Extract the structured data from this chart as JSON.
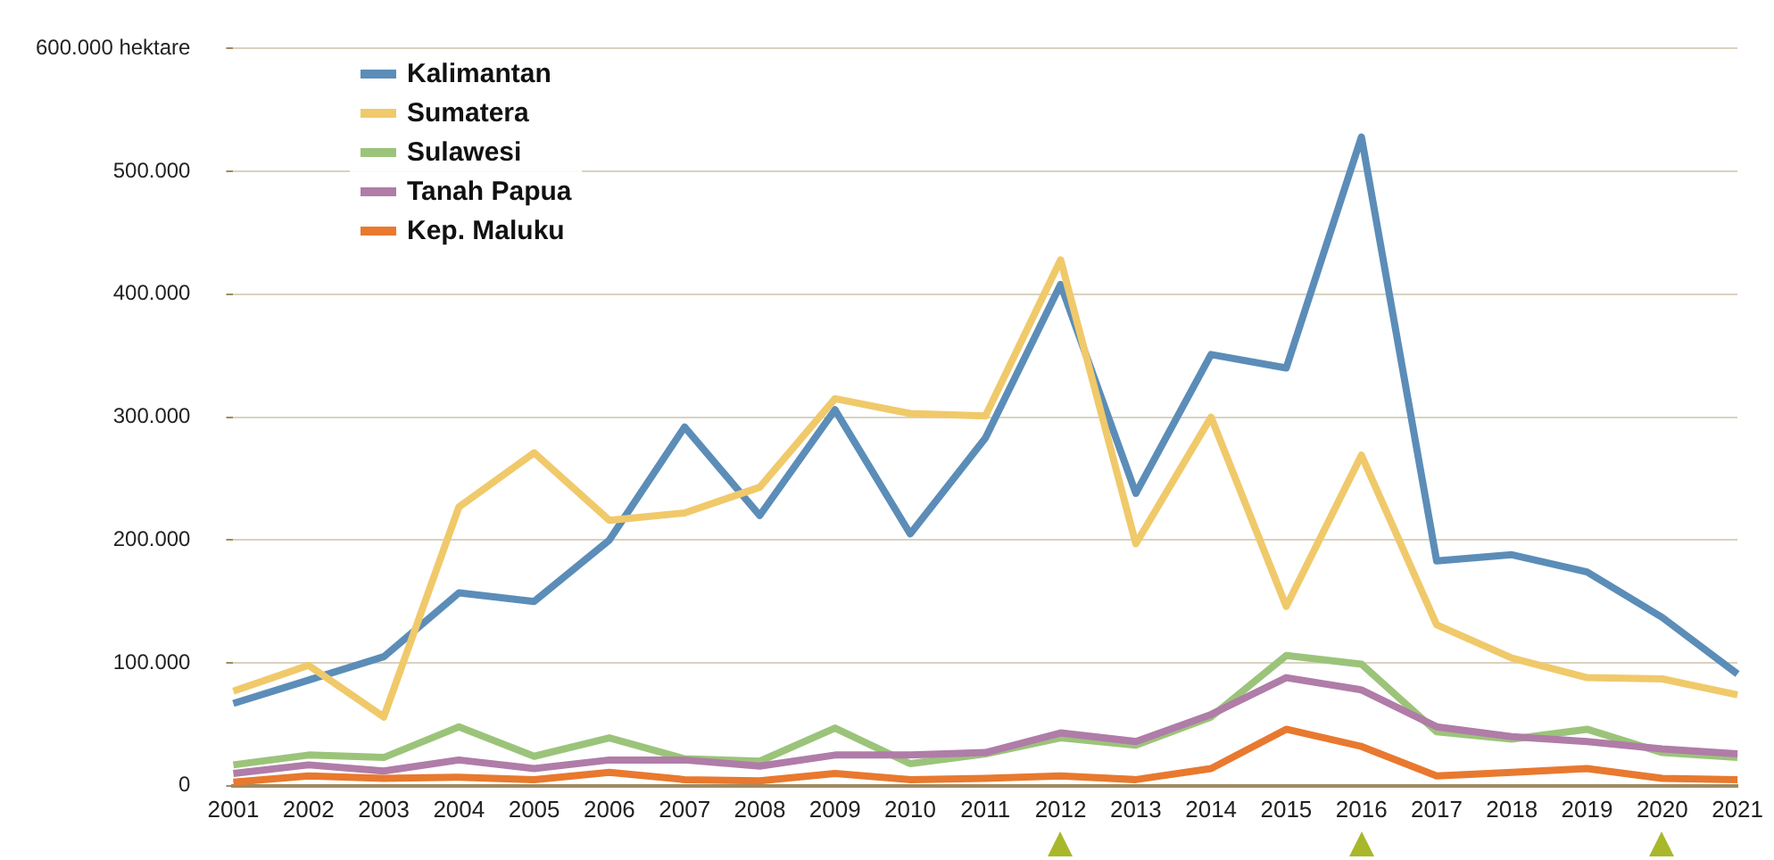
{
  "chart_data": {
    "type": "line",
    "categories": [
      "2001",
      "2002",
      "2003",
      "2004",
      "2005",
      "2006",
      "2007",
      "2008",
      "2009",
      "2010",
      "2011",
      "2012",
      "2013",
      "2014",
      "2015",
      "2016",
      "2017",
      "2018",
      "2019",
      "2020",
      "2021"
    ],
    "series": [
      {
        "name": "Kalimantan",
        "color": "#5b8db8",
        "values": [
          67000,
          86000,
          105000,
          157000,
          150000,
          200000,
          292000,
          220000,
          306000,
          205000,
          283000,
          408000,
          238000,
          351000,
          340000,
          528000,
          183000,
          188000,
          174000,
          137000,
          91000
        ]
      },
      {
        "name": "Sumatera",
        "color": "#f0c96a",
        "values": [
          77000,
          98000,
          56000,
          227000,
          271000,
          216000,
          222000,
          243000,
          315000,
          303000,
          301000,
          428000,
          197000,
          300000,
          146000,
          269000,
          131000,
          104000,
          88000,
          87000,
          74000
        ]
      },
      {
        "name": "Sulawesi",
        "color": "#9bc47a",
        "values": [
          17000,
          25000,
          23000,
          48000,
          24000,
          39000,
          22000,
          20000,
          47000,
          18000,
          26000,
          39000,
          33000,
          56000,
          106000,
          99000,
          44000,
          38000,
          46000,
          27000,
          23000
        ]
      },
      {
        "name": "Tanah Papua",
        "color": "#b07ca8",
        "values": [
          10000,
          17000,
          12000,
          21000,
          14000,
          21000,
          21000,
          16000,
          25000,
          25000,
          27000,
          43000,
          36000,
          58000,
          88000,
          78000,
          48000,
          40000,
          36000,
          30000,
          26000
        ]
      },
      {
        "name": "Kep. Maluku",
        "color": "#e8792f",
        "values": [
          3000,
          8000,
          6000,
          7000,
          5000,
          11000,
          5000,
          4000,
          10000,
          5000,
          6000,
          8000,
          5000,
          14000,
          46000,
          32000,
          8000,
          11000,
          14000,
          6000,
          5000
        ]
      }
    ],
    "ylim": [
      0,
      600000
    ],
    "yticks": [
      0,
      {
        "value": 100000,
        "label": "100.000"
      },
      {
        "value": 200000,
        "label": "200.000"
      },
      {
        "value": 300000,
        "label": "300.000"
      },
      {
        "value": 400000,
        "label": "400.000"
      },
      {
        "value": 500000,
        "label": "500.000"
      },
      {
        "value": 600000,
        "label": "600.000 hektare"
      }
    ],
    "grid": "y",
    "legend": "top left",
    "marker": "none",
    "line_style": "solid"
  }
}
